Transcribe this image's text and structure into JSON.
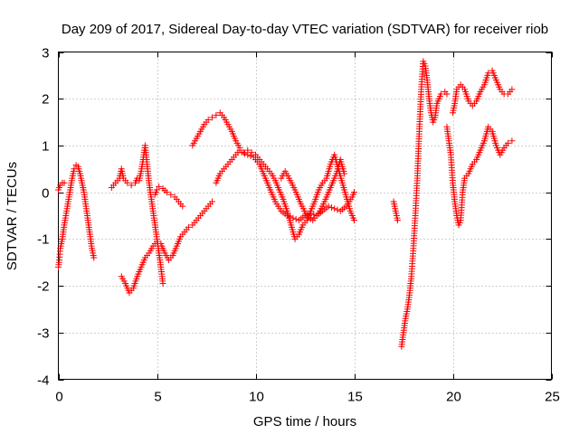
{
  "chart_data": {
    "type": "scatter",
    "title": "Day 209 of 2017, Sidereal Day-to-day VTEC variation (SDTVAR) for receiver riob",
    "xlabel": "GPS time / hours",
    "ylabel": "SDTVAR / TECUs",
    "xlim": [
      0,
      25
    ],
    "ylim": [
      -4,
      3
    ],
    "xticks": [
      0,
      5,
      10,
      15,
      20,
      25
    ],
    "yticks": [
      -4,
      -3,
      -2,
      -1,
      0,
      1,
      2,
      3
    ],
    "grid": true,
    "marker": "+",
    "color": "#ff0000",
    "series": [
      {
        "name": "SDTVAR",
        "segments": [
          [
            [
              0.0,
              -1.6
            ],
            [
              0.05,
              -1.45
            ],
            [
              0.1,
              -1.2
            ],
            [
              0.2,
              -1.0
            ],
            [
              0.3,
              -0.7
            ],
            [
              0.4,
              -0.45
            ],
            [
              0.5,
              -0.2
            ],
            [
              0.6,
              0.05
            ],
            [
              0.7,
              0.3
            ],
            [
              0.8,
              0.5
            ],
            [
              0.9,
              0.58
            ],
            [
              1.0,
              0.55
            ],
            [
              1.1,
              0.4
            ],
            [
              1.2,
              0.2
            ],
            [
              1.3,
              0.0
            ],
            [
              1.4,
              -0.3
            ],
            [
              1.5,
              -0.6
            ],
            [
              1.6,
              -0.9
            ],
            [
              1.7,
              -1.2
            ],
            [
              1.8,
              -1.4
            ]
          ],
          [
            [
              0.0,
              0.05
            ],
            [
              0.1,
              0.15
            ],
            [
              0.2,
              0.2
            ],
            [
              0.3,
              0.2
            ]
          ],
          [
            [
              2.7,
              0.1
            ],
            [
              2.9,
              0.2
            ],
            [
              3.1,
              0.3
            ],
            [
              3.2,
              0.5
            ],
            [
              3.3,
              0.3
            ],
            [
              3.5,
              0.2
            ],
            [
              3.7,
              0.15
            ],
            [
              3.9,
              0.2
            ],
            [
              4.0,
              0.3
            ],
            [
              4.1,
              0.25
            ],
            [
              4.2,
              0.45
            ],
            [
              4.3,
              0.7
            ],
            [
              4.4,
              1.0
            ],
            [
              4.5,
              0.6
            ],
            [
              4.6,
              0.2
            ],
            [
              4.7,
              -0.1
            ],
            [
              4.8,
              -0.4
            ],
            [
              4.9,
              -0.7
            ],
            [
              5.0,
              -1.0
            ],
            [
              5.1,
              -1.3
            ],
            [
              5.2,
              -1.6
            ],
            [
              5.3,
              -1.95
            ]
          ],
          [
            [
              3.2,
              -1.8
            ],
            [
              3.4,
              -1.95
            ],
            [
              3.6,
              -2.15
            ],
            [
              3.8,
              -2.05
            ],
            [
              4.0,
              -1.8
            ],
            [
              4.2,
              -1.6
            ],
            [
              4.4,
              -1.4
            ],
            [
              4.6,
              -1.3
            ],
            [
              4.8,
              -1.15
            ],
            [
              5.0,
              -1.05
            ],
            [
              5.2,
              -1.1
            ],
            [
              5.4,
              -1.3
            ],
            [
              5.6,
              -1.45
            ],
            [
              5.8,
              -1.35
            ],
            [
              6.0,
              -1.15
            ],
            [
              6.2,
              -0.95
            ],
            [
              6.4,
              -0.85
            ],
            [
              6.6,
              -0.75
            ],
            [
              6.8,
              -0.7
            ],
            [
              7.0,
              -0.6
            ],
            [
              7.2,
              -0.5
            ],
            [
              7.4,
              -0.4
            ],
            [
              7.6,
              -0.3
            ],
            [
              7.8,
              -0.2
            ]
          ],
          [
            [
              4.9,
              -0.05
            ],
            [
              5.0,
              0.05
            ],
            [
              5.1,
              0.12
            ],
            [
              5.3,
              0.08
            ],
            [
              5.5,
              0.0
            ],
            [
              5.7,
              -0.05
            ],
            [
              5.9,
              -0.1
            ],
            [
              6.1,
              -0.2
            ],
            [
              6.3,
              -0.3
            ]
          ],
          [
            [
              6.8,
              1.0
            ],
            [
              7.0,
              1.15
            ],
            [
              7.2,
              1.3
            ],
            [
              7.4,
              1.45
            ],
            [
              7.6,
              1.55
            ],
            [
              7.8,
              1.6
            ],
            [
              8.0,
              1.65
            ],
            [
              8.2,
              1.7
            ],
            [
              8.4,
              1.6
            ],
            [
              8.6,
              1.45
            ],
            [
              8.8,
              1.3
            ],
            [
              9.0,
              1.1
            ],
            [
              9.2,
              0.95
            ]
          ],
          [
            [
              8.0,
              0.2
            ],
            [
              8.2,
              0.4
            ],
            [
              8.4,
              0.5
            ],
            [
              8.6,
              0.6
            ],
            [
              8.8,
              0.7
            ],
            [
              9.0,
              0.8
            ],
            [
              9.2,
              0.9
            ],
            [
              9.4,
              0.85
            ],
            [
              9.6,
              0.9
            ],
            [
              9.8,
              0.85
            ],
            [
              10.0,
              0.8
            ],
            [
              10.2,
              0.7
            ],
            [
              10.4,
              0.6
            ],
            [
              10.6,
              0.5
            ],
            [
              10.8,
              0.4
            ],
            [
              11.0,
              0.25
            ],
            [
              11.2,
              0.05
            ],
            [
              11.4,
              -0.15
            ],
            [
              11.6,
              -0.4
            ],
            [
              11.8,
              -0.7
            ],
            [
              12.0,
              -1.0
            ],
            [
              12.2,
              -0.9
            ],
            [
              12.4,
              -0.7
            ],
            [
              12.6,
              -0.6
            ],
            [
              12.8,
              -0.4
            ],
            [
              13.0,
              -0.2
            ],
            [
              13.2,
              0.05
            ],
            [
              13.4,
              0.2
            ],
            [
              13.6,
              0.3
            ],
            [
              13.8,
              0.6
            ],
            [
              14.0,
              0.8
            ],
            [
              14.2,
              0.5
            ],
            [
              14.4,
              0.2
            ],
            [
              14.6,
              -0.1
            ],
            [
              14.8,
              -0.4
            ],
            [
              15.0,
              -0.6
            ]
          ],
          [
            [
              9.3,
              0.85
            ],
            [
              9.6,
              0.8
            ],
            [
              9.9,
              0.75
            ],
            [
              10.2,
              0.6
            ],
            [
              10.4,
              0.4
            ],
            [
              10.6,
              0.2
            ],
            [
              10.8,
              0.0
            ],
            [
              11.0,
              -0.2
            ],
            [
              11.3,
              -0.4
            ],
            [
              11.6,
              -0.5
            ],
            [
              11.9,
              -0.55
            ],
            [
              12.2,
              -0.6
            ],
            [
              12.5,
              -0.5
            ],
            [
              12.8,
              -0.45
            ],
            [
              13.1,
              -0.5
            ],
            [
              13.4,
              -0.4
            ],
            [
              13.7,
              -0.3
            ],
            [
              14.0,
              -0.35
            ],
            [
              14.3,
              -0.4
            ],
            [
              14.6,
              -0.3
            ],
            [
              14.9,
              -0.1
            ],
            [
              15.0,
              0.0
            ]
          ],
          [
            [
              11.3,
              0.3
            ],
            [
              11.5,
              0.45
            ],
            [
              11.7,
              0.3
            ],
            [
              12.0,
              0.05
            ],
            [
              12.3,
              -0.25
            ],
            [
              12.6,
              -0.5
            ],
            [
              12.9,
              -0.6
            ],
            [
              13.2,
              -0.45
            ],
            [
              13.5,
              -0.2
            ],
            [
              13.8,
              0.1
            ],
            [
              14.1,
              0.4
            ],
            [
              14.3,
              0.7
            ],
            [
              14.5,
              0.4
            ]
          ],
          [
            [
              17.0,
              -0.2
            ],
            [
              17.1,
              -0.4
            ],
            [
              17.2,
              -0.6
            ]
          ],
          [
            [
              17.4,
              -3.3
            ],
            [
              17.5,
              -3.0
            ],
            [
              17.6,
              -2.7
            ],
            [
              17.7,
              -2.5
            ],
            [
              17.8,
              -2.2
            ],
            [
              17.9,
              -1.8
            ],
            [
              18.0,
              -1.2
            ],
            [
              18.1,
              -0.5
            ],
            [
              18.2,
              0.3
            ],
            [
              18.3,
              1.3
            ],
            [
              18.4,
              2.2
            ],
            [
              18.5,
              2.8
            ],
            [
              18.6,
              2.7
            ],
            [
              18.7,
              2.4
            ],
            [
              18.8,
              2.0
            ],
            [
              18.9,
              1.7
            ],
            [
              19.0,
              1.5
            ],
            [
              19.1,
              1.6
            ],
            [
              19.2,
              1.9
            ],
            [
              19.4,
              2.1
            ],
            [
              19.6,
              2.15
            ],
            [
              19.7,
              2.1
            ]
          ],
          [
            [
              19.7,
              1.4
            ],
            [
              19.8,
              1.1
            ],
            [
              19.9,
              0.8
            ],
            [
              20.0,
              0.2
            ],
            [
              20.1,
              -0.2
            ],
            [
              20.2,
              -0.5
            ],
            [
              20.3,
              -0.7
            ],
            [
              20.4,
              -0.6
            ],
            [
              20.5,
              0.0
            ],
            [
              20.6,
              0.3
            ],
            [
              20.8,
              0.4
            ],
            [
              21.0,
              0.6
            ],
            [
              21.2,
              0.7
            ],
            [
              21.4,
              0.9
            ],
            [
              21.6,
              1.1
            ],
            [
              21.8,
              1.4
            ],
            [
              22.0,
              1.3
            ],
            [
              22.2,
              1.0
            ],
            [
              22.4,
              0.8
            ],
            [
              22.6,
              0.95
            ],
            [
              22.8,
              1.05
            ],
            [
              23.0,
              1.1
            ]
          ],
          [
            [
              20.0,
              1.7
            ],
            [
              20.1,
              1.9
            ],
            [
              20.2,
              2.2
            ],
            [
              20.4,
              2.3
            ],
            [
              20.6,
              2.2
            ],
            [
              20.8,
              1.95
            ],
            [
              21.0,
              1.85
            ],
            [
              21.2,
              1.95
            ],
            [
              21.4,
              2.15
            ],
            [
              21.6,
              2.3
            ],
            [
              21.8,
              2.55
            ],
            [
              22.0,
              2.6
            ],
            [
              22.2,
              2.4
            ],
            [
              22.4,
              2.2
            ],
            [
              22.6,
              2.1
            ],
            [
              22.8,
              2.1
            ],
            [
              23.0,
              2.2
            ]
          ]
        ]
      }
    ]
  }
}
